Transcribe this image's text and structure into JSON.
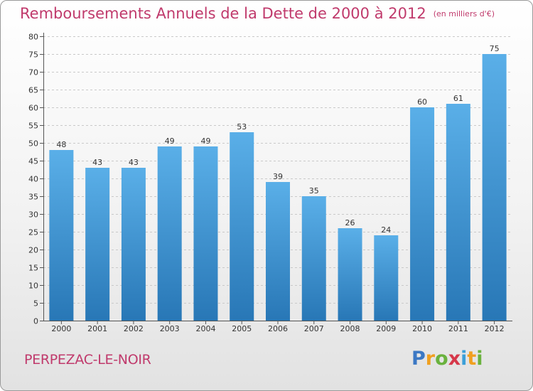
{
  "title": "Remboursements Annuels de la Dette de 2000 à 2012",
  "unit": "(en milliers d'€)",
  "commune": "PERPEZAC-LE-NOIR",
  "logo": {
    "text": "Proxiti",
    "letters": [
      {
        "char": "P",
        "color": "#3b78c4"
      },
      {
        "char": "r",
        "color": "#f0a020"
      },
      {
        "char": "o",
        "color": "#6ab23e"
      },
      {
        "char": "x",
        "color": "#d6384a"
      },
      {
        "char": "i",
        "color": "#3b9fd8"
      },
      {
        "char": "t",
        "color": "#f0a020"
      },
      {
        "char": "i",
        "color": "#6ab23e"
      }
    ]
  },
  "colors": {
    "title": "#c03a6c",
    "bar_top": "#5aafe8",
    "bar_bottom": "#2877b6",
    "grid": "#c9c9c9",
    "axis": "#555555"
  },
  "chart_data": {
    "type": "bar",
    "categories": [
      "2000",
      "2001",
      "2002",
      "2003",
      "2004",
      "2005",
      "2006",
      "2007",
      "2008",
      "2009",
      "2010",
      "2011",
      "2012"
    ],
    "values": [
      48,
      43,
      43,
      49,
      49,
      53,
      39,
      35,
      26,
      24,
      60,
      61,
      75
    ],
    "ylim": [
      0,
      80
    ],
    "yticks": [
      0,
      5,
      10,
      15,
      20,
      25,
      30,
      35,
      40,
      45,
      50,
      55,
      60,
      65,
      70,
      75,
      80
    ],
    "grid": true,
    "data_labels": true
  }
}
